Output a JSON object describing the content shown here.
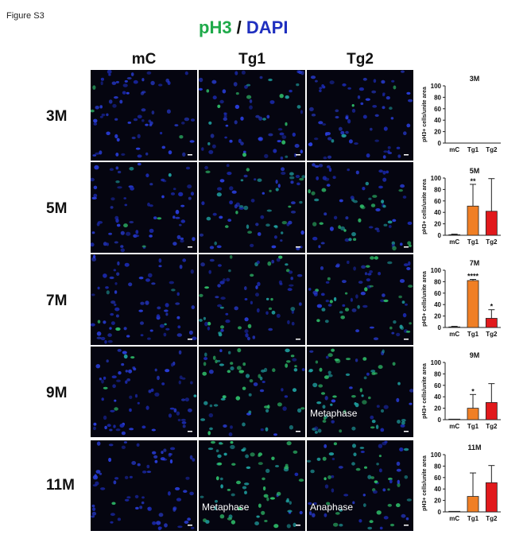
{
  "figure_label": "Figure S3",
  "title": {
    "part1": "pH3",
    "sep": " / ",
    "part2": "DAPI"
  },
  "colors": {
    "ph3": "#1faa4a",
    "dapi": "#1f2fbf",
    "tg1": "#f07f25",
    "tg2": "#e1191c",
    "axis": "#222222"
  },
  "columns": [
    "mC",
    "Tg1",
    "Tg2"
  ],
  "rows": [
    "3M",
    "5M",
    "7M",
    "9M",
    "11M"
  ],
  "panel_captions": {
    "metaphase_9m_tg2": "Metaphase",
    "metaphase_11m_tg1": "Metaphase",
    "anaphase_11m_tg2": "Anaphase"
  },
  "chart_data": [
    {
      "type": "bar",
      "title": "3M",
      "ylabel": "pH3+ cells/unite area",
      "categories": [
        "mC",
        "Tg1",
        "Tg2"
      ],
      "values": [
        0,
        0,
        0
      ],
      "errors": [
        0,
        0,
        0
      ],
      "significance": [
        "",
        "",
        ""
      ],
      "ylim": [
        0,
        100
      ],
      "yticks": [
        0,
        20,
        40,
        60,
        80,
        100
      ]
    },
    {
      "type": "bar",
      "title": "5M",
      "ylabel": "pH3+ cells/unite area",
      "categories": [
        "mC",
        "Tg1",
        "Tg2"
      ],
      "values": [
        1,
        51,
        42
      ],
      "errors": [
        1,
        38,
        57
      ],
      "significance": [
        "",
        "**",
        ""
      ],
      "ylim": [
        0,
        100
      ],
      "yticks": [
        0,
        20,
        40,
        60,
        80,
        100
      ]
    },
    {
      "type": "bar",
      "title": "7M",
      "ylabel": "pH3+ cells/unite area",
      "categories": [
        "mC",
        "Tg1",
        "Tg2"
      ],
      "values": [
        1,
        82,
        16
      ],
      "errors": [
        1,
        2,
        15
      ],
      "significance": [
        "",
        "****",
        "*"
      ],
      "ylim": [
        0,
        100
      ],
      "yticks": [
        0,
        20,
        40,
        60,
        80,
        100
      ]
    },
    {
      "type": "bar",
      "title": "9M",
      "ylabel": "pH3+ cells/unite area",
      "categories": [
        "mC",
        "Tg1",
        "Tg2"
      ],
      "values": [
        1,
        20,
        30
      ],
      "errors": [
        0,
        24,
        33
      ],
      "significance": [
        "",
        "*",
        ""
      ],
      "ylim": [
        0,
        100
      ],
      "yticks": [
        0,
        20,
        40,
        60,
        80,
        100
      ]
    },
    {
      "type": "bar",
      "title": "11M",
      "ylabel": "pH3+ cells/unite area",
      "categories": [
        "mC",
        "Tg1",
        "Tg2"
      ],
      "values": [
        1,
        27,
        51
      ],
      "errors": [
        0,
        41,
        30
      ],
      "significance": [
        "",
        "",
        ""
      ],
      "ylim": [
        0,
        100
      ],
      "yticks": [
        0,
        20,
        40,
        60,
        80,
        100
      ]
    }
  ]
}
